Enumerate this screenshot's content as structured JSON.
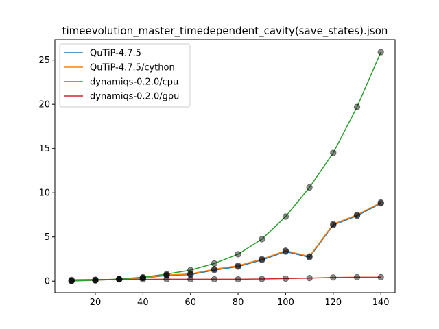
{
  "chart_data": {
    "type": "line",
    "title": "timeevolution_master_timedependent_cavity(save_states).json",
    "xlabel": "",
    "ylabel": "",
    "xlim": [
      3,
      146
    ],
    "ylim": [
      -1.3,
      27.3
    ],
    "xticks": [
      20,
      40,
      60,
      80,
      100,
      120,
      140
    ],
    "yticks": [
      0,
      5,
      10,
      15,
      20,
      25
    ],
    "grid": false,
    "legend_position": "top-left",
    "x": [
      10,
      20,
      30,
      40,
      50,
      60,
      70,
      80,
      90,
      100,
      110,
      120,
      130,
      140
    ],
    "series": [
      {
        "name": "QuTiP-4.7.5",
        "color": "#1f77b4",
        "values": [
          0.05,
          0.1,
          0.2,
          0.35,
          0.65,
          0.75,
          1.25,
          1.65,
          2.4,
          3.35,
          2.7,
          6.35,
          7.4,
          8.8
        ]
      },
      {
        "name": "QuTiP-4.7.5/cython",
        "color": "#ff7f0e",
        "values": [
          0.05,
          0.1,
          0.22,
          0.38,
          0.7,
          0.82,
          1.35,
          1.75,
          2.5,
          3.45,
          2.8,
          6.45,
          7.5,
          8.9
        ]
      },
      {
        "name": "dynamiqs-0.2.0/cpu",
        "color": "#2ca02c",
        "values": [
          0.02,
          0.1,
          0.25,
          0.45,
          0.8,
          1.25,
          2.0,
          3.05,
          4.75,
          7.3,
          10.6,
          14.5,
          19.7,
          25.9
        ]
      },
      {
        "name": "dynamiqs-0.2.0/gpu",
        "color": "#d62728",
        "values": [
          0.15,
          0.18,
          0.2,
          0.2,
          0.22,
          0.22,
          0.22,
          0.22,
          0.25,
          0.3,
          0.35,
          0.42,
          0.45,
          0.45
        ]
      }
    ],
    "marker_color": "#000000"
  }
}
